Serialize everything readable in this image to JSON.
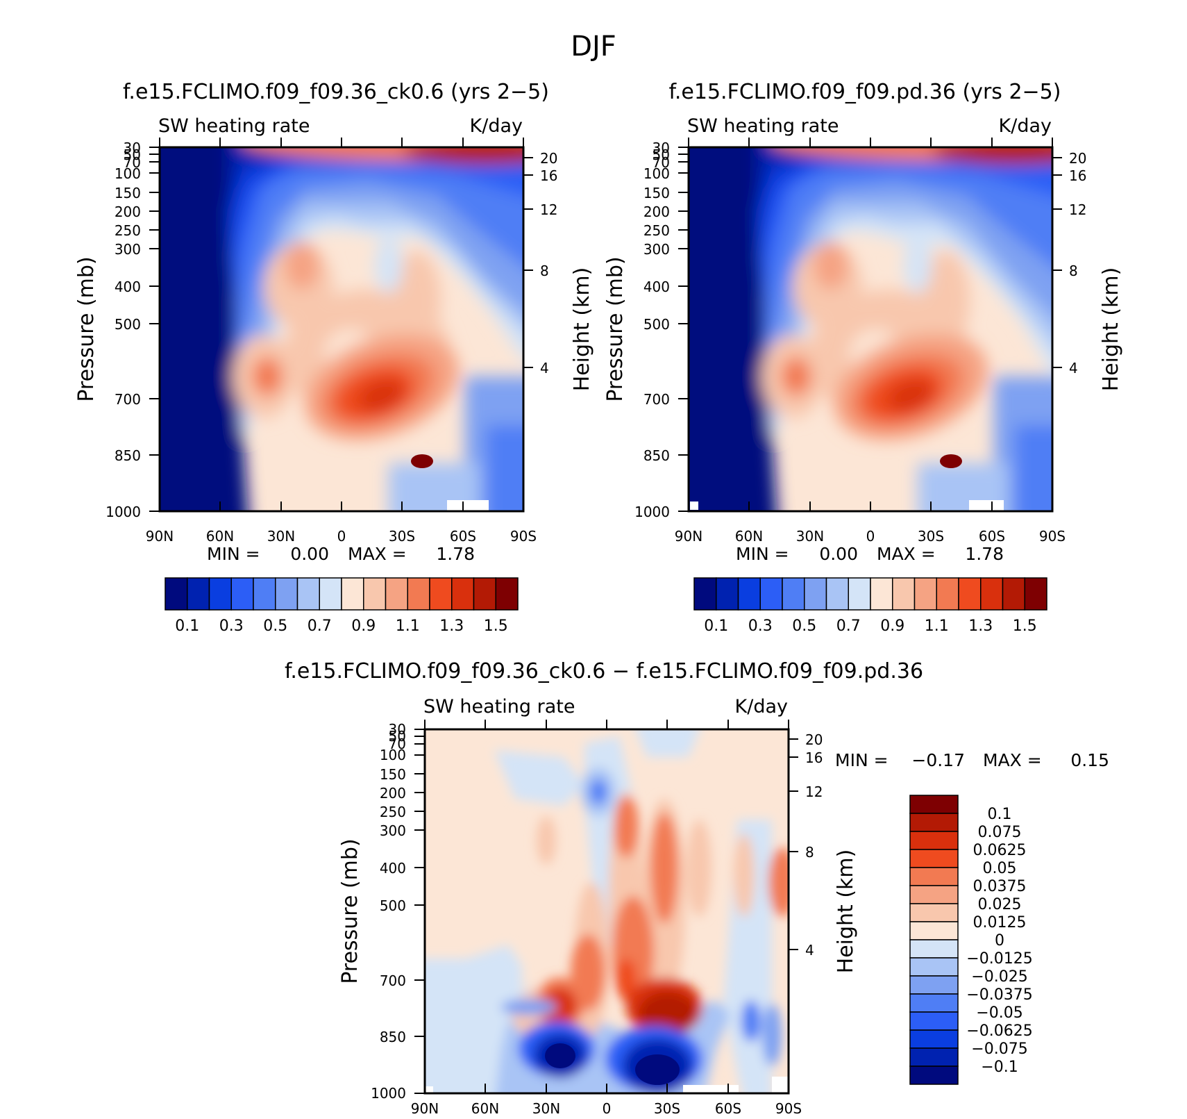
{
  "main_title": "DJF",
  "chart_data": [
    {
      "type": "heatmap",
      "title": "f.e15.FCLIMO.f09_f09.36_ck0.6 (yrs 2−5)",
      "variable_label": "SW heating rate",
      "units_label": "K/day",
      "xlabel": "",
      "ylabel": "Pressure (mb)",
      "ylabel_right": "Height (km)",
      "x_ticks": [
        "90N",
        "60N",
        "30N",
        "0",
        "30S",
        "60S",
        "90S"
      ],
      "y_ticks": [
        "30",
        "50",
        "70",
        "100",
        "150",
        "200",
        "250",
        "300",
        "400",
        "500",
        "700",
        "850",
        "1000"
      ],
      "y_ticks_right": [
        "20",
        "16",
        "12",
        "8",
        "4"
      ],
      "stats": {
        "min_label": "MIN =",
        "min": "0.00",
        "max_label": "MAX =",
        "max": "1.78"
      },
      "colorbar": {
        "orientation": "horizontal",
        "labels": [
          "0.1",
          "0.3",
          "0.5",
          "0.7",
          "0.9",
          "1.1",
          "1.3",
          "1.5"
        ],
        "levels": [
          0.1,
          0.2,
          0.3,
          0.4,
          0.5,
          0.6,
          0.7,
          0.8,
          0.9,
          1.0,
          1.1,
          1.2,
          1.3,
          1.4,
          1.5
        ],
        "colors": [
          "#000a7e",
          "#0022b0",
          "#0a3ee0",
          "#2c5ef6",
          "#4f7ef5",
          "#7ea1f2",
          "#a9c4f5",
          "#d4e4f7",
          "#fce6d6",
          "#f8c7ad",
          "#f5a383",
          "#f27a52",
          "#ef4b1f",
          "#d9300d",
          "#b31a05",
          "#7e0002"
        ]
      },
      "notes": "heating near zero in NH polar region, maximum ~1.78 K/day near 850 mb 30-45S and at top of model 60-90S"
    },
    {
      "type": "heatmap",
      "title": "f.e15.FCLIMO.f09_f09.pd.36 (yrs 2−5)",
      "variable_label": "SW heating rate",
      "units_label": "K/day",
      "xlabel": "",
      "ylabel": "Pressure (mb)",
      "ylabel_right": "Height (km)",
      "x_ticks": [
        "90N",
        "60N",
        "30N",
        "0",
        "30S",
        "60S",
        "90S"
      ],
      "y_ticks": [
        "30",
        "50",
        "70",
        "100",
        "150",
        "200",
        "250",
        "300",
        "400",
        "500",
        "700",
        "850",
        "1000"
      ],
      "y_ticks_right": [
        "20",
        "16",
        "12",
        "8",
        "4"
      ],
      "stats": {
        "min_label": "MIN =",
        "min": "0.00",
        "max_label": "MAX =",
        "max": "1.78"
      },
      "colorbar": {
        "orientation": "horizontal",
        "labels": [
          "0.1",
          "0.3",
          "0.5",
          "0.7",
          "0.9",
          "1.1",
          "1.3",
          "1.5"
        ],
        "levels": [
          0.1,
          0.2,
          0.3,
          0.4,
          0.5,
          0.6,
          0.7,
          0.8,
          0.9,
          1.0,
          1.1,
          1.2,
          1.3,
          1.4,
          1.5
        ],
        "colors": [
          "#000a7e",
          "#0022b0",
          "#0a3ee0",
          "#2c5ef6",
          "#4f7ef5",
          "#7ea1f2",
          "#a9c4f5",
          "#d4e4f7",
          "#fce6d6",
          "#f8c7ad",
          "#f5a383",
          "#f27a52",
          "#ef4b1f",
          "#d9300d",
          "#b31a05",
          "#7e0002"
        ]
      }
    },
    {
      "type": "heatmap",
      "title": "f.e15.FCLIMO.f09_f09.36_ck0.6 − f.e15.FCLIMO.f09_f09.pd.36",
      "variable_label": "SW heating rate",
      "units_label": "K/day",
      "xlabel": "",
      "ylabel": "Pressure (mb)",
      "ylabel_right": "Height (km)",
      "x_ticks": [
        "90N",
        "60N",
        "30N",
        "0",
        "30S",
        "60S",
        "90S"
      ],
      "y_ticks": [
        "30",
        "50",
        "70",
        "100",
        "150",
        "200",
        "250",
        "300",
        "400",
        "500",
        "700",
        "850",
        "1000"
      ],
      "y_ticks_right": [
        "20",
        "16",
        "12",
        "8",
        "4"
      ],
      "stats": {
        "min_label": "MIN =",
        "min": "−0.17",
        "max_label": "MAX =",
        "max": "0.15"
      },
      "colorbar": {
        "orientation": "vertical",
        "labels": [
          "0.1",
          "0.075",
          "0.0625",
          "0.05",
          "0.0375",
          "0.025",
          "0.0125",
          "0",
          "−0.0125",
          "−0.025",
          "−0.0375",
          "−0.05",
          "−0.0625",
          "−0.075",
          "−0.1"
        ],
        "colors_top_to_bottom": [
          "#7e0002",
          "#b31a05",
          "#d9300d",
          "#ef4b1f",
          "#f27a52",
          "#f5a383",
          "#f8c7ad",
          "#fce6d6",
          "#d4e4f7",
          "#a9c4f5",
          "#7ea1f2",
          "#4f7ef5",
          "#2c5ef6",
          "#0a3ee0",
          "#0022b0",
          "#000a7e"
        ]
      }
    }
  ]
}
